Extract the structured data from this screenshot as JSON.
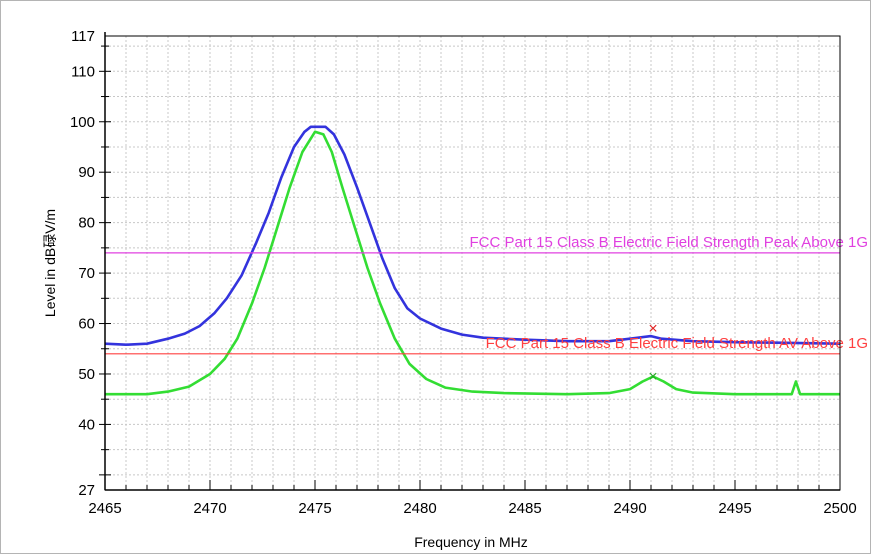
{
  "chart_data": {
    "type": "line",
    "xlabel": "Frequency in MHz",
    "ylabel": "Level in dB碌V/m",
    "xlim": [
      2465,
      2500
    ],
    "ylim": [
      27,
      117
    ],
    "x_ticks": [
      2465,
      2470,
      2475,
      2480,
      2485,
      2490,
      2495,
      2500
    ],
    "x_tick_labels": [
      "2465",
      "2470",
      "2475",
      "2480",
      "2485",
      "2490",
      "2495",
      "2500"
    ],
    "y_tick_labels": [
      {
        "value": 117,
        "label": "117"
      },
      {
        "value": 110,
        "label": "110"
      },
      {
        "value": 100,
        "label": "100"
      },
      {
        "value": 90,
        "label": "90"
      },
      {
        "value": 80,
        "label": "80"
      },
      {
        "value": 70,
        "label": "70"
      },
      {
        "value": 60,
        "label": "60"
      },
      {
        "value": 50,
        "label": "50"
      },
      {
        "value": 40,
        "label": "40"
      },
      {
        "value": 27,
        "label": "27"
      }
    ],
    "grid": true,
    "series": [
      {
        "color": "#3333dd",
        "points": [
          [
            2465,
            56
          ],
          [
            2466,
            55.8
          ],
          [
            2467,
            56
          ],
          [
            2468,
            57
          ],
          [
            2468.8,
            58
          ],
          [
            2469.5,
            59.5
          ],
          [
            2470.2,
            62
          ],
          [
            2470.8,
            65
          ],
          [
            2471.5,
            69.5
          ],
          [
            2472.2,
            76
          ],
          [
            2472.8,
            82
          ],
          [
            2473.4,
            89
          ],
          [
            2474.0,
            95
          ],
          [
            2474.5,
            98
          ],
          [
            2474.8,
            99
          ],
          [
            2475.5,
            99
          ],
          [
            2475.9,
            97.5
          ],
          [
            2476.4,
            93.5
          ],
          [
            2477.0,
            87
          ],
          [
            2477.6,
            80
          ],
          [
            2478.2,
            73
          ],
          [
            2478.8,
            67
          ],
          [
            2479.4,
            63
          ],
          [
            2480,
            61
          ],
          [
            2481,
            59
          ],
          [
            2482,
            57.8
          ],
          [
            2483,
            57.2
          ],
          [
            2485,
            56.8
          ],
          [
            2487,
            56.5
          ],
          [
            2489,
            56.5
          ],
          [
            2490,
            57
          ],
          [
            2491,
            57.5
          ],
          [
            2491.5,
            57
          ],
          [
            2493,
            56.5
          ],
          [
            2495,
            56.3
          ],
          [
            2497,
            56.2
          ],
          [
            2500,
            56
          ]
        ]
      },
      {
        "color": "#33dd33",
        "points": [
          [
            2465,
            46
          ],
          [
            2467,
            46
          ],
          [
            2468,
            46.5
          ],
          [
            2469,
            47.5
          ],
          [
            2470,
            50
          ],
          [
            2470.7,
            53
          ],
          [
            2471.3,
            57
          ],
          [
            2472.0,
            64
          ],
          [
            2472.6,
            71
          ],
          [
            2473.2,
            79
          ],
          [
            2473.8,
            87
          ],
          [
            2474.4,
            94
          ],
          [
            2475.0,
            98
          ],
          [
            2475.4,
            97.5
          ],
          [
            2475.8,
            94
          ],
          [
            2476.3,
            87
          ],
          [
            2476.9,
            79
          ],
          [
            2477.5,
            71
          ],
          [
            2478.1,
            64
          ],
          [
            2478.8,
            57
          ],
          [
            2479.5,
            52
          ],
          [
            2480.3,
            49
          ],
          [
            2481.2,
            47.3
          ],
          [
            2482.5,
            46.5
          ],
          [
            2484,
            46.2
          ],
          [
            2487,
            46
          ],
          [
            2489,
            46.2
          ],
          [
            2490,
            47
          ],
          [
            2490.6,
            48.5
          ],
          [
            2491.1,
            49.5
          ],
          [
            2491.6,
            48.5
          ],
          [
            2492.2,
            47
          ],
          [
            2493,
            46.3
          ],
          [
            2495,
            46
          ],
          [
            2497.7,
            46
          ],
          [
            2497.9,
            48.5
          ],
          [
            2498.1,
            46
          ],
          [
            2500,
            46
          ]
        ]
      }
    ],
    "limit_lines": [
      {
        "name": "FCC Part 15 Class B Electric Field Strength Peak Above 1G",
        "value": 74,
        "color": "#e040e0"
      },
      {
        "name": "FCC Part 15 Class B Electric Field Strength AV Above 1G",
        "value": 54,
        "color": "#ff4040"
      }
    ],
    "markers": [
      {
        "x": 2491.1,
        "y": 59,
        "symbol": "×",
        "color": "#e02020"
      },
      {
        "x": 2491.1,
        "y": 49.5,
        "symbol": "×",
        "color": "#22aa22"
      }
    ]
  }
}
